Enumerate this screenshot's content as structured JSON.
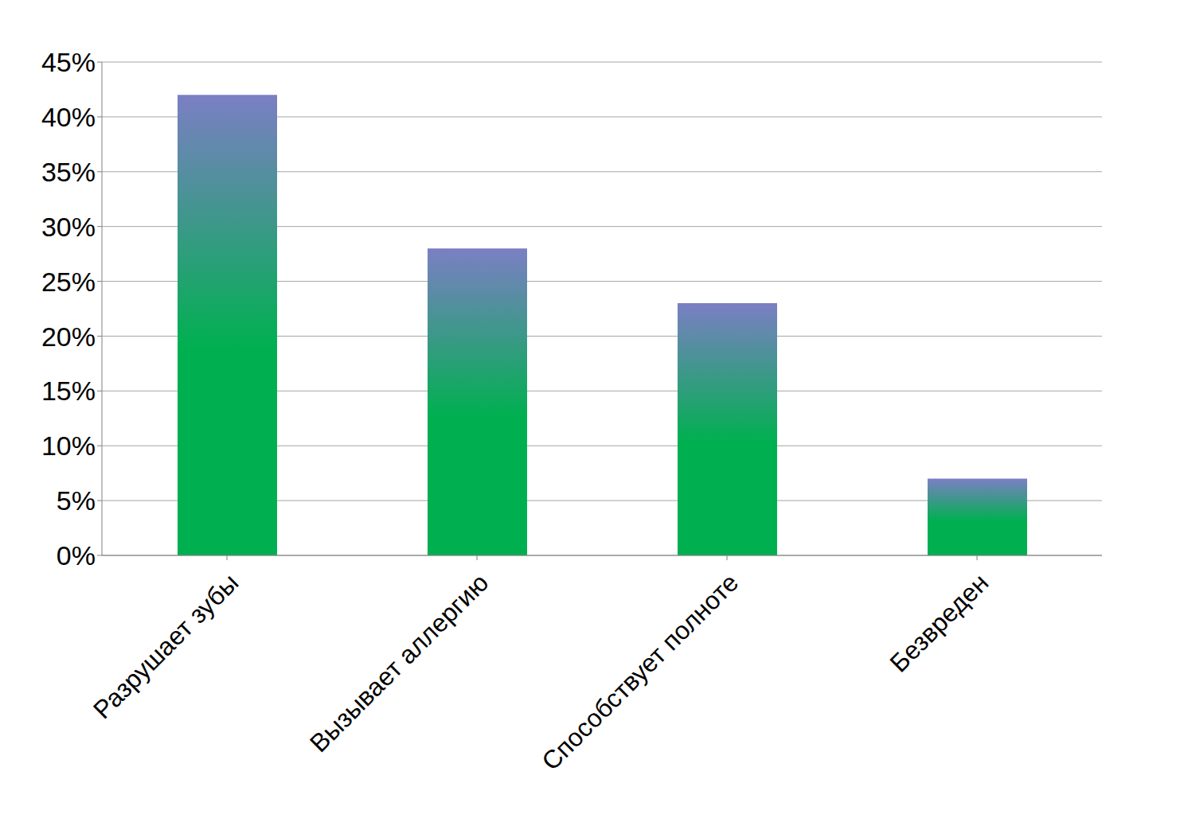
{
  "chart_data": {
    "type": "bar",
    "categories": [
      "Разрушает зубы",
      "Вызывает аллергию",
      "Способствует полноте",
      "Безвреден"
    ],
    "values": [
      42,
      28,
      23,
      7
    ],
    "color": "#00b050",
    "ylim": [
      0,
      45
    ],
    "yticks": [
      {
        "value": 0,
        "label": "0%"
      },
      {
        "value": 5,
        "label": "5%"
      },
      {
        "value": 10,
        "label": "10%"
      },
      {
        "value": 15,
        "label": "15%"
      },
      {
        "value": 20,
        "label": "20%"
      },
      {
        "value": 25,
        "label": "25%"
      },
      {
        "value": 30,
        "label": "30%"
      },
      {
        "value": 35,
        "label": "35%"
      },
      {
        "value": 40,
        "label": "40%"
      },
      {
        "value": 45,
        "label": "45%"
      }
    ],
    "grid": true
  }
}
